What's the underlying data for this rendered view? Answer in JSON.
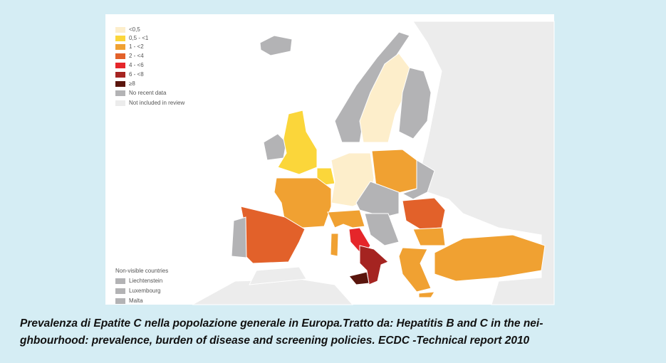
{
  "legend": {
    "items": [
      {
        "label": "<0,5",
        "color": "#fdeecb"
      },
      {
        "label": "0,5 - <1",
        "color": "#fbd63a"
      },
      {
        "label": "1 - <2",
        "color": "#f0a132"
      },
      {
        "label": "2 - <4",
        "color": "#e2612a"
      },
      {
        "label": "4 - <6",
        "color": "#e5262a"
      },
      {
        "label": "6 - <8",
        "color": "#a52421"
      },
      {
        "label": "≥8",
        "color": "#5a150d"
      },
      {
        "label": "No recent data",
        "color": "#b3b3b5"
      },
      {
        "label": "Not included in review",
        "color": "#ececec"
      }
    ]
  },
  "non_visible": {
    "title": "Non-visible countries",
    "items": [
      {
        "label": "Liechtenstein",
        "color": "#b3b3b5"
      },
      {
        "label": "Luxembourg",
        "color": "#b3b3b5"
      },
      {
        "label": "Malta",
        "color": "#b3b3b5"
      }
    ]
  },
  "caption": {
    "lines": [
      "Prevalenza di Epatite C nella popolazione generale in Europa.Tratto da: Hepatitis B and C in the nei-",
      "ghbourhood: prevalence, burden of disease and screening policies. ECDC -Technical report 2010"
    ]
  }
}
